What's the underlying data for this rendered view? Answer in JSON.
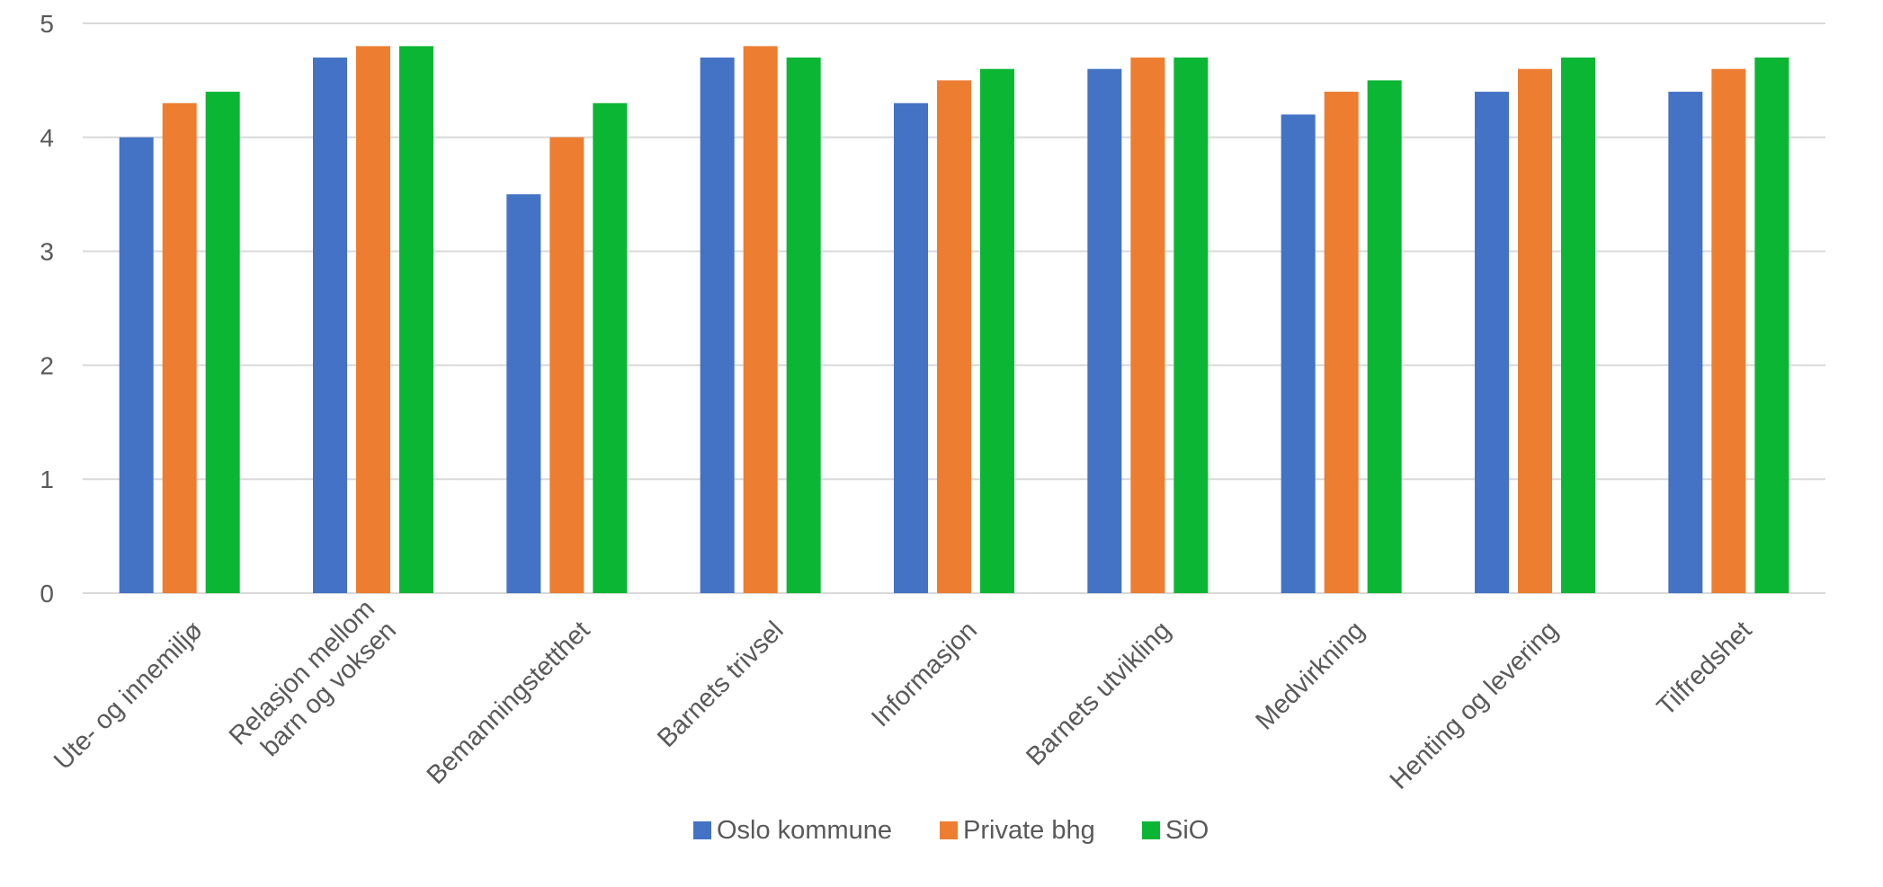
{
  "chart_data": {
    "type": "bar",
    "title": "",
    "xlabel": "",
    "ylabel": "",
    "ylim": [
      0,
      5
    ],
    "yticks": [
      0,
      1,
      2,
      3,
      4,
      5
    ],
    "grid": true,
    "legend_position": "bottom",
    "categories": [
      "Ute- og innemiljø",
      "Relasjon mellom barn og voksen",
      "Bemanningstetthet",
      "Barnets trivsel",
      "Informasjon",
      "Barnets utvikling",
      "Medvirkning",
      "Henting og levering",
      "Tilfredshet"
    ],
    "category_label_lines": [
      [
        "Ute- og innemiljø"
      ],
      [
        "Relasjon mellom",
        "barn og voksen"
      ],
      [
        "Bemanningstetthet"
      ],
      [
        "Barnets trivsel"
      ],
      [
        "Informasjon"
      ],
      [
        "Barnets utvikling"
      ],
      [
        "Medvirkning"
      ],
      [
        "Henting og levering"
      ],
      [
        "Tilfredshet"
      ]
    ],
    "series": [
      {
        "name": "Oslo kommune",
        "color": "#4472C4",
        "values": [
          4.0,
          4.7,
          3.5,
          4.7,
          4.3,
          4.6,
          4.2,
          4.4,
          4.4
        ]
      },
      {
        "name": "Private bhg",
        "color": "#ED7D31",
        "values": [
          4.3,
          4.8,
          4.0,
          4.8,
          4.5,
          4.7,
          4.4,
          4.6,
          4.6
        ]
      },
      {
        "name": "SiO",
        "color": "#0BB634",
        "values": [
          4.4,
          4.8,
          4.3,
          4.7,
          4.6,
          4.7,
          4.5,
          4.7,
          4.7
        ]
      }
    ],
    "colors": {
      "grid": "#D9D9D9",
      "text": "#595959"
    }
  }
}
